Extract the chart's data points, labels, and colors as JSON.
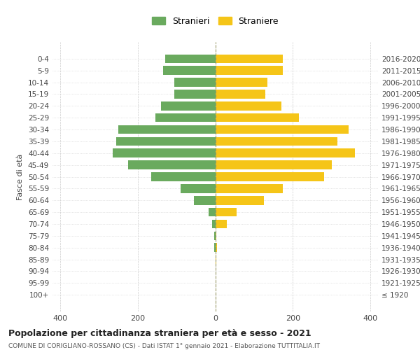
{
  "age_groups": [
    "100+",
    "95-99",
    "90-94",
    "85-89",
    "80-84",
    "75-79",
    "70-74",
    "65-69",
    "60-64",
    "55-59",
    "50-54",
    "45-49",
    "40-44",
    "35-39",
    "30-34",
    "25-29",
    "20-24",
    "15-19",
    "10-14",
    "5-9",
    "0-4"
  ],
  "birth_years": [
    "≤ 1920",
    "1921-1925",
    "1926-1930",
    "1931-1935",
    "1936-1940",
    "1941-1945",
    "1946-1950",
    "1951-1955",
    "1956-1960",
    "1961-1965",
    "1966-1970",
    "1971-1975",
    "1976-1980",
    "1981-1985",
    "1986-1990",
    "1991-1995",
    "1996-2000",
    "2001-2005",
    "2006-2010",
    "2011-2015",
    "2016-2020"
  ],
  "males": [
    0,
    0,
    0,
    0,
    3,
    2,
    8,
    18,
    55,
    90,
    165,
    225,
    265,
    255,
    250,
    155,
    140,
    105,
    105,
    135,
    130
  ],
  "females": [
    0,
    0,
    0,
    2,
    4,
    3,
    30,
    55,
    125,
    175,
    280,
    300,
    360,
    315,
    345,
    215,
    170,
    130,
    135,
    175,
    175
  ],
  "male_color": "#6aaa5e",
  "female_color": "#f5c518",
  "background_color": "#ffffff",
  "grid_color": "#cccccc",
  "title": "Popolazione per cittadinanza straniera per età e sesso - 2021",
  "subtitle": "COMUNE DI CORIGLIANO-ROSSANO (CS) - Dati ISTAT 1° gennaio 2021 - Elaborazione TUTTITALIA.IT",
  "ylabel_left": "Fasce di età",
  "legend_male": "Stranieri",
  "legend_female": "Straniere",
  "xlim": 420,
  "xticks": [
    -400,
    -200,
    0,
    200,
    400
  ],
  "xtick_labels": [
    "400",
    "200",
    "0",
    "200",
    "400"
  ]
}
